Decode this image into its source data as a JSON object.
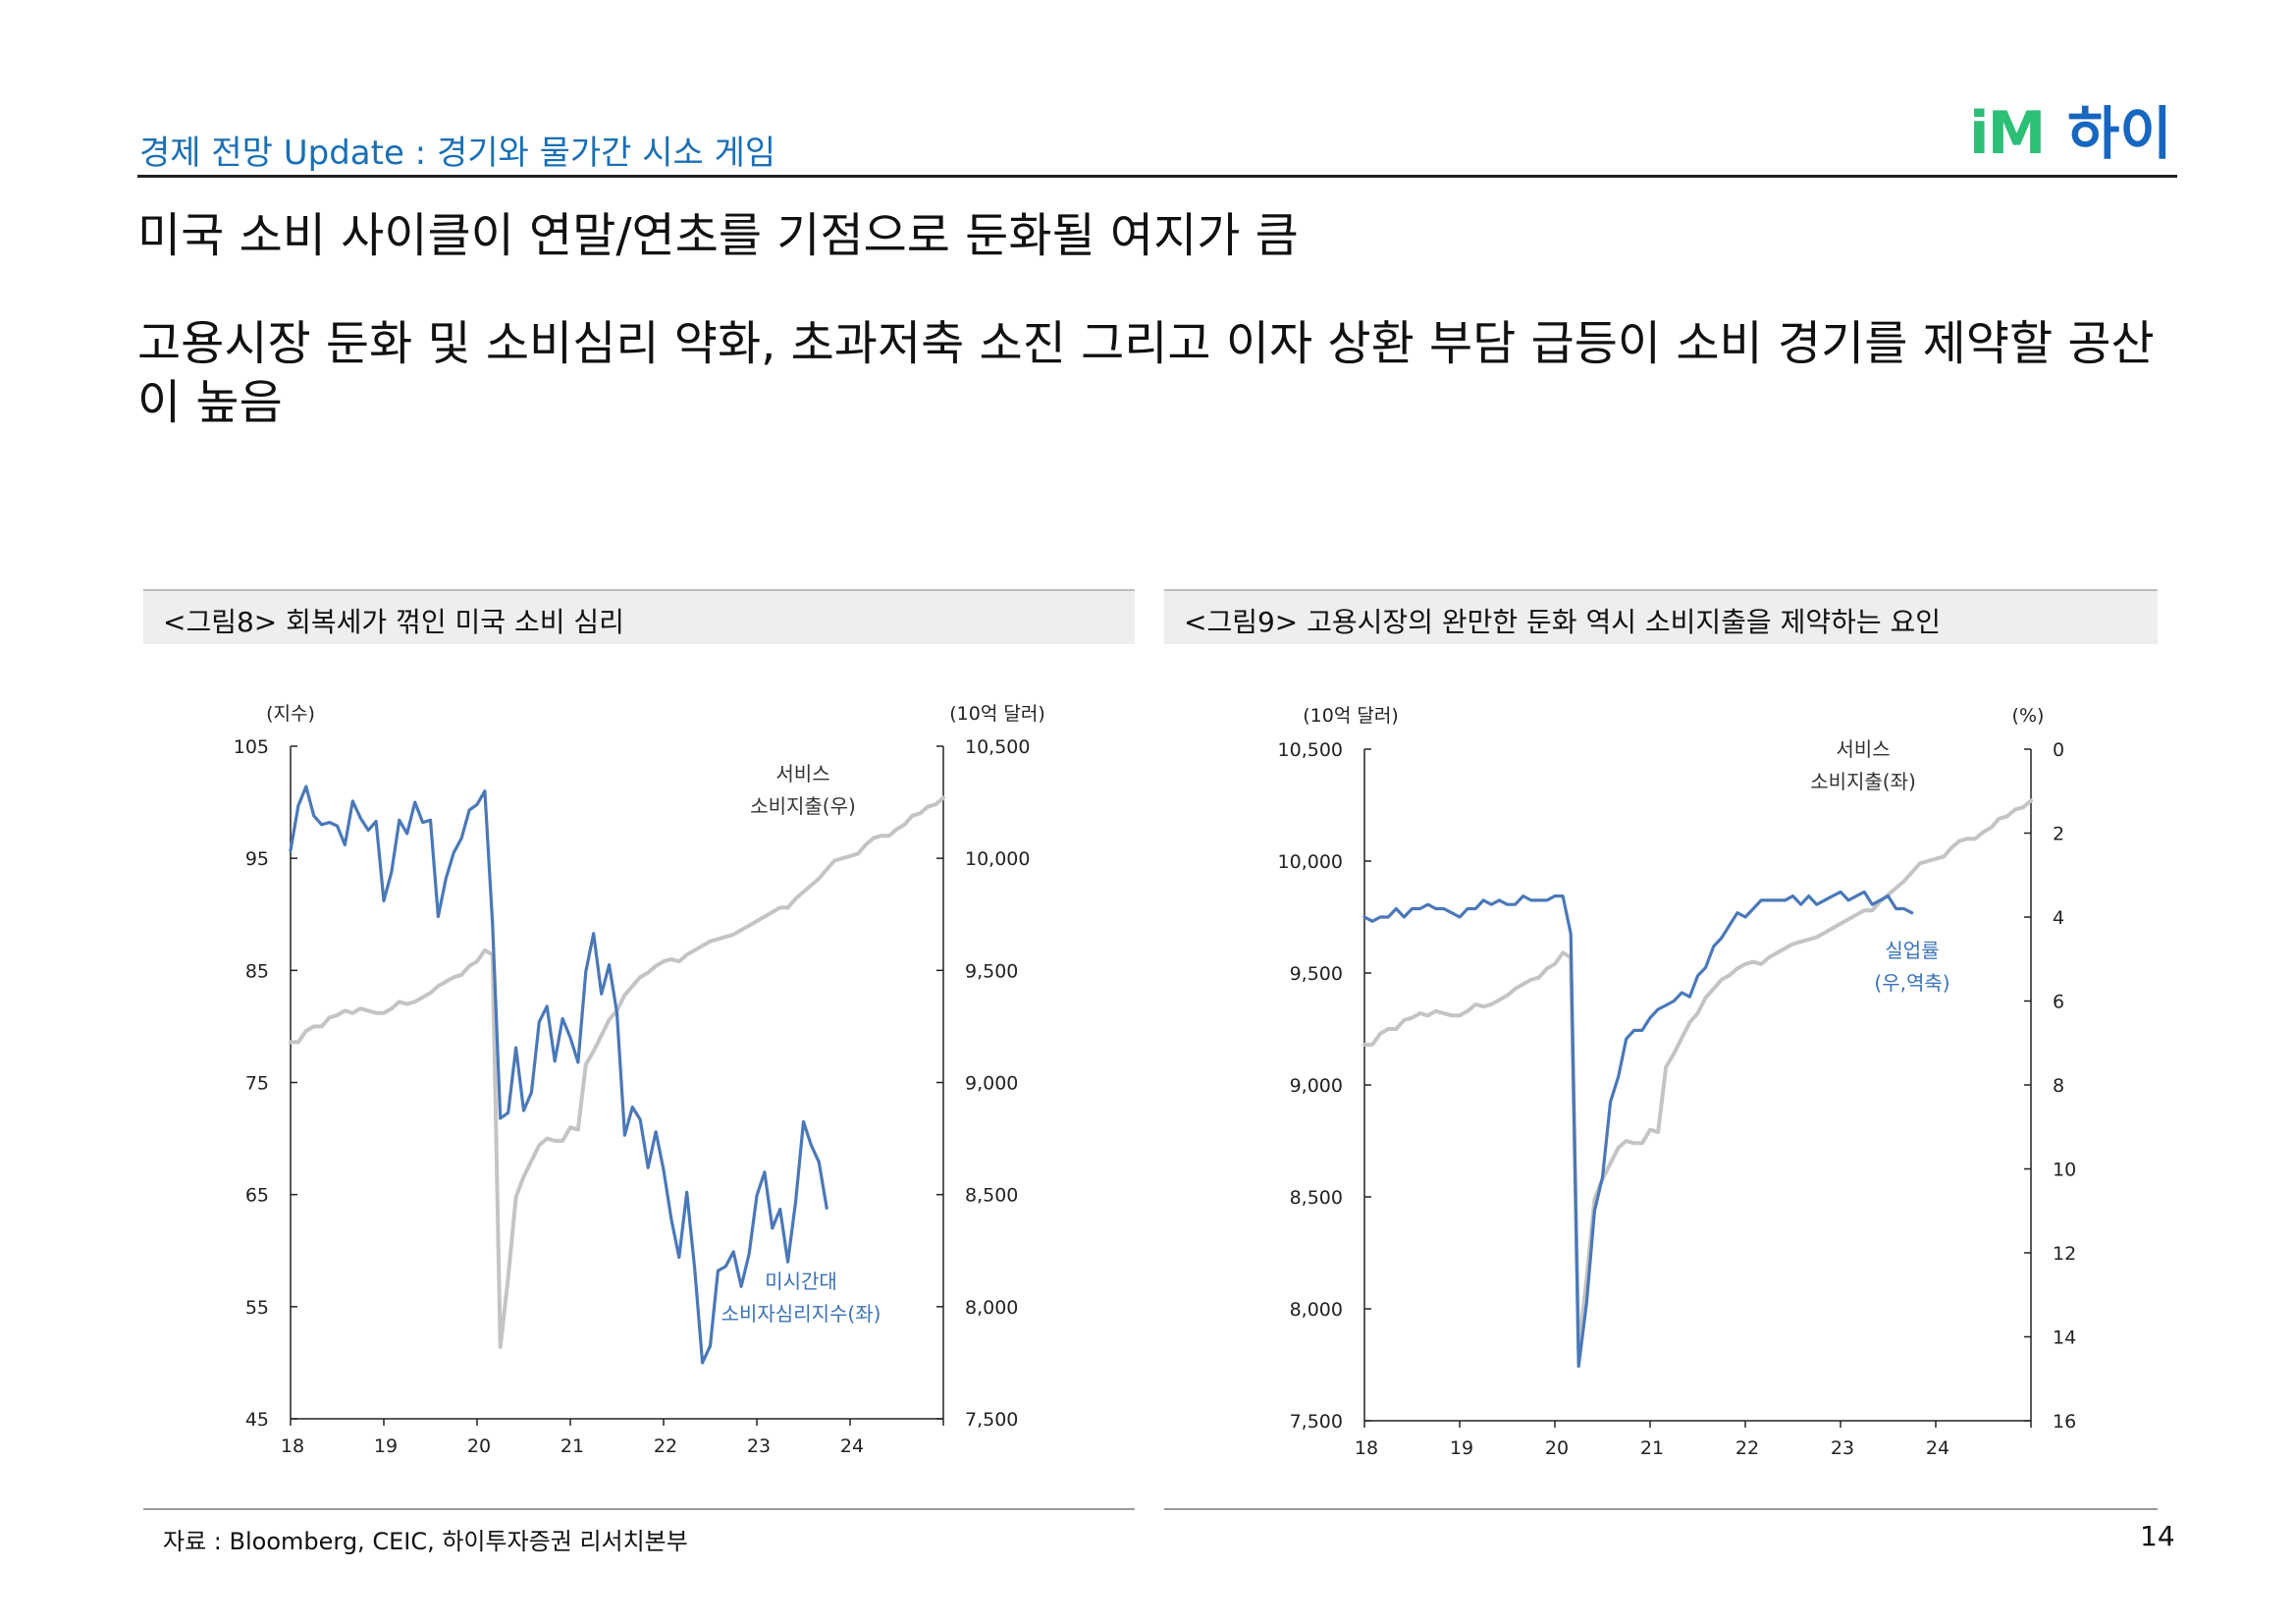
{
  "header": {
    "title": "경제 전망 Update : 경기와 물가간 시소 게임",
    "logo_mark": "iM",
    "logo_text": "하이"
  },
  "main_title": "미국 소비 사이클이 연말/연초를 기점으로 둔화될 여지가 큼",
  "subtitle": "고용시장 둔화 및 소비심리 약화, 초과저축 소진 그리고 이자 상환 부담 급등이 소비 경기를 제약할 공산이 높음",
  "figures": {
    "fig8": {
      "caption": "<그림8> 회복세가 꺾인 미국 소비 심리"
    },
    "fig9": {
      "caption": "<그림9> 고용시장의 완만한 둔화 역시 소비지출을 제약하는 요인"
    }
  },
  "colors": {
    "blue": "#4a78b8",
    "gray": "#c4c4c4",
    "annot_blue": "#3a72b8"
  },
  "source": "자료 : Bloomberg, CEIC, 하이투자증권 리서치본부",
  "page_number": "14",
  "chart_data": [
    {
      "type": "line",
      "title": "<그림8> 회복세가 꺾인 미국 소비 심리",
      "left_axis": {
        "label": "(지수)",
        "ylim": [
          45,
          105
        ],
        "ticks": [
          45,
          55,
          65,
          75,
          85,
          95,
          105
        ],
        "tick_labels": [
          "45",
          "55",
          "65",
          "75",
          "85",
          "95",
          "105"
        ]
      },
      "right_axis": {
        "label": "(10억 달러)",
        "ylim": [
          7500,
          10500
        ],
        "ticks": [
          7500,
          8000,
          8500,
          9000,
          9500,
          10000,
          10500
        ],
        "tick_labels": [
          "7,500",
          "8,000",
          "8,500",
          "9,000",
          "9,500",
          "10,000",
          "10,500"
        ]
      },
      "x_axis": {
        "xlim": [
          2018,
          2025
        ],
        "ticks": [
          2018,
          2019,
          2020,
          2021,
          2022,
          2023,
          2024
        ],
        "tick_labels": [
          "18",
          "19",
          "20",
          "21",
          "22",
          "23",
          "24"
        ]
      },
      "series": [
        {
          "name": "미시간대 소비자심리지수(좌)",
          "label_lines": [
            "미시간대",
            "소비자심리지수(좌)"
          ],
          "axis": "left",
          "color": "#4a78b8",
          "start": 2018.0,
          "step": 0.08333,
          "values": [
            95.7,
            99.7,
            101.4,
            98.8,
            98.0,
            98.2,
            97.9,
            96.2,
            100.1,
            98.6,
            97.5,
            98.3,
            91.2,
            93.8,
            98.4,
            97.2,
            100.0,
            98.2,
            98.4,
            89.8,
            93.2,
            95.5,
            96.8,
            99.3,
            99.8,
            101.0,
            89.1,
            71.8,
            72.3,
            78.1,
            72.5,
            74.1,
            80.4,
            81.8,
            76.9,
            80.7,
            79.0,
            76.8,
            84.9,
            88.3,
            82.9,
            85.5,
            81.2,
            70.3,
            72.8,
            71.7,
            67.4,
            70.6,
            67.2,
            62.8,
            59.4,
            65.2,
            58.4,
            50.0,
            51.5,
            58.2,
            58.6,
            59.9,
            56.8,
            59.7,
            64.9,
            67.0,
            62.0,
            63.7,
            59.0,
            64.4,
            71.5,
            69.4,
            67.9,
            63.8
          ]
        },
        {
          "name": "서비스 소비지출(우)",
          "label_lines": [
            "서비스",
            "소비지출(우)"
          ],
          "axis": "right",
          "color": "#c4c4c4",
          "start": 2018.0,
          "step": 0.08333,
          "values": [
            9180,
            9180,
            9230,
            9250,
            9250,
            9290,
            9300,
            9320,
            9310,
            9330,
            9320,
            9310,
            9310,
            9330,
            9360,
            9350,
            9360,
            9380,
            9400,
            9430,
            9450,
            9470,
            9480,
            9520,
            9540,
            9590,
            9570,
            7820,
            8130,
            8490,
            8580,
            8650,
            8720,
            8750,
            8740,
            8740,
            8800,
            8790,
            9080,
            9140,
            9210,
            9280,
            9320,
            9390,
            9430,
            9470,
            9490,
            9520,
            9540,
            9550,
            9540,
            9570,
            9590,
            9610,
            9630,
            9640,
            9650,
            9660,
            9680,
            9700,
            9720,
            9740,
            9760,
            9780,
            9780,
            9820,
            9850,
            9880,
            9910,
            9950,
            9990,
            10000,
            10010,
            10020,
            10060,
            10090,
            10100,
            10100,
            10130,
            10150,
            10190,
            10200,
            10230,
            10240,
            10270
          ]
        }
      ]
    },
    {
      "type": "line",
      "title": "<그림9> 고용시장의 완만한 둔화 역시 소비지출을 제약하는 요인",
      "left_axis": {
        "label": "(10억 달러)",
        "ylim": [
          7500,
          10500
        ],
        "ticks": [
          7500,
          8000,
          8500,
          9000,
          9500,
          10000,
          10500
        ],
        "tick_labels": [
          "7,500",
          "8,000",
          "8,500",
          "9,000",
          "9,500",
          "10,000",
          "10,500"
        ]
      },
      "right_axis": {
        "label": "(%)",
        "ylim": [
          16,
          0
        ],
        "ticks": [
          0,
          2,
          4,
          6,
          8,
          10,
          12,
          14,
          16
        ],
        "tick_labels": [
          "0",
          "2",
          "4",
          "6",
          "8",
          "10",
          "12",
          "14",
          "16"
        ],
        "inverted": true
      },
      "x_axis": {
        "xlim": [
          2018,
          2025
        ],
        "ticks": [
          2018,
          2019,
          2020,
          2021,
          2022,
          2023,
          2024
        ],
        "tick_labels": [
          "18",
          "19",
          "20",
          "21",
          "22",
          "23",
          "24"
        ]
      },
      "series": [
        {
          "name": "서비스 소비지출(좌)",
          "label_lines": [
            "서비스",
            "소비지출(좌)"
          ],
          "axis": "left",
          "color": "#c4c4c4",
          "start": 2018.0,
          "step": 0.08333,
          "values": [
            9180,
            9180,
            9230,
            9250,
            9250,
            9290,
            9300,
            9320,
            9310,
            9330,
            9320,
            9310,
            9310,
            9330,
            9360,
            9350,
            9360,
            9380,
            9400,
            9430,
            9450,
            9470,
            9480,
            9520,
            9540,
            9590,
            9570,
            7820,
            8130,
            8490,
            8580,
            8650,
            8720,
            8750,
            8740,
            8740,
            8800,
            8790,
            9080,
            9140,
            9210,
            9280,
            9320,
            9390,
            9430,
            9470,
            9490,
            9520,
            9540,
            9550,
            9540,
            9570,
            9590,
            9610,
            9630,
            9640,
            9650,
            9660,
            9680,
            9700,
            9720,
            9740,
            9760,
            9780,
            9780,
            9820,
            9850,
            9880,
            9910,
            9950,
            9990,
            10000,
            10010,
            10020,
            10060,
            10090,
            10100,
            10100,
            10130,
            10150,
            10190,
            10200,
            10230,
            10240,
            10270
          ]
        },
        {
          "name": "실업률(우,역축)",
          "label_lines": [
            "실업률",
            "(우,역축)"
          ],
          "axis": "right",
          "color": "#4a78b8",
          "start": 2018.0,
          "step": 0.08333,
          "values": [
            4.0,
            4.1,
            4.0,
            4.0,
            3.8,
            4.0,
            3.8,
            3.8,
            3.7,
            3.8,
            3.8,
            3.9,
            4.0,
            3.8,
            3.8,
            3.6,
            3.7,
            3.6,
            3.7,
            3.7,
            3.5,
            3.6,
            3.6,
            3.6,
            3.5,
            3.5,
            4.4,
            14.7,
            13.2,
            11.0,
            10.2,
            8.4,
            7.8,
            6.9,
            6.7,
            6.7,
            6.4,
            6.2,
            6.1,
            6.0,
            5.8,
            5.9,
            5.4,
            5.2,
            4.7,
            4.5,
            4.2,
            3.9,
            4.0,
            3.8,
            3.6,
            3.6,
            3.6,
            3.6,
            3.5,
            3.7,
            3.5,
            3.7,
            3.6,
            3.5,
            3.4,
            3.6,
            3.5,
            3.4,
            3.7,
            3.6,
            3.5,
            3.8,
            3.8,
            3.9
          ]
        }
      ]
    }
  ]
}
